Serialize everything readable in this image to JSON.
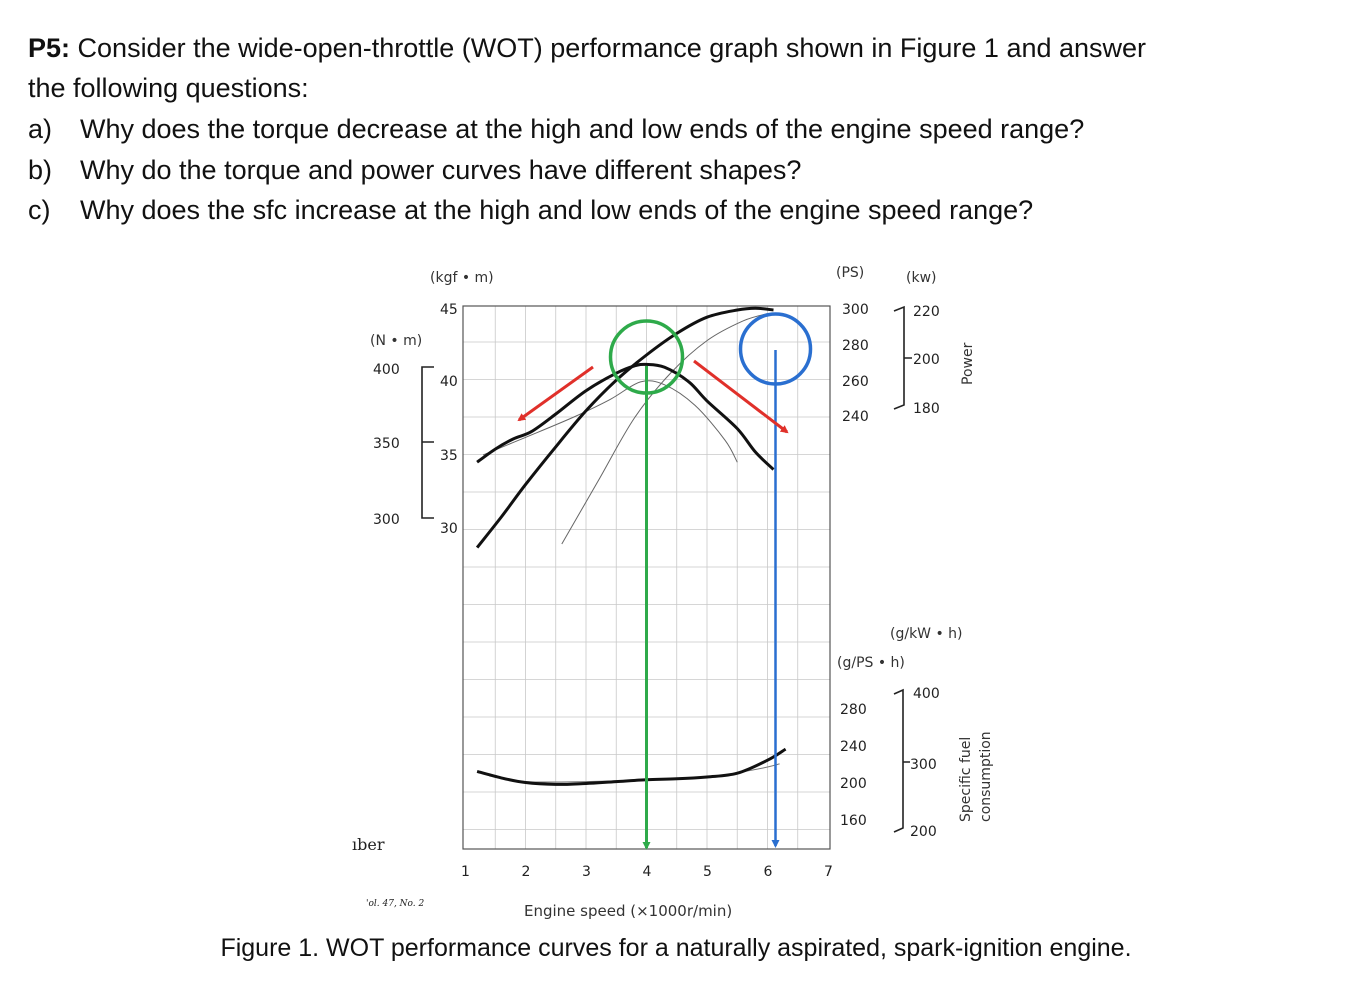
{
  "question": {
    "label": "P5:",
    "intro_line1": " Consider the wide-open-throttle (WOT) performance graph shown in Figure 1 and answer",
    "intro_line2": "the following questions:",
    "items": [
      {
        "marker": "a)",
        "text": "Why does the torque decrease at the high and low ends of the engine speed range?"
      },
      {
        "marker": "b)",
        "text": "Why do the torque and power curves have different shapes?"
      },
      {
        "marker": "c)",
        "text": "Why does the sfc increase at the high and low ends of the engine speed range?"
      }
    ]
  },
  "caption": "Figure 1. WOT performance curves for a naturally aspirated, spark-ignition engine.",
  "scan_fragments": {
    "left_text": "ıber",
    "source": "'ol. 47, No. 2"
  },
  "colors": {
    "green": "#2eaa4a",
    "blue": "#2a6fd0",
    "red": "#e0302a",
    "curve": "#111111"
  },
  "chart_data": {
    "type": "line",
    "xlabel": "Engine speed (×1000r/min)",
    "x_ticks": [
      "1",
      "2",
      "3",
      "4",
      "5",
      "6",
      "7"
    ],
    "xlim": [
      1,
      7
    ],
    "axes": {
      "torque_nm": {
        "unit": "(N • m)",
        "ticks": [
          "400",
          "350",
          "300"
        ]
      },
      "torque_kgfm": {
        "unit": "(kgf • m)",
        "ticks": [
          "45",
          "40",
          "35",
          "30"
        ]
      },
      "power_ps": {
        "unit": "(PS)",
        "ticks": [
          "300",
          "280",
          "260",
          "240"
        ]
      },
      "power_kw": {
        "unit": "(kw)",
        "ticks": [
          "220",
          "200",
          "180"
        ]
      },
      "power_label": "Power",
      "sfc_gpsh": {
        "unit": "(g/PS • h)",
        "ticks": [
          "280",
          "240",
          "200",
          "160"
        ]
      },
      "sfc_gkwh": {
        "unit": "(g/kW • h)",
        "ticks": [
          "400",
          "300",
          "200"
        ]
      },
      "sfc_label_1": "Specific fuel",
      "sfc_label_2": "consumption"
    },
    "series": [
      {
        "x": [
          1.2,
          1.5,
          1.8,
          2.1,
          2.5,
          3.0,
          3.5,
          3.8,
          4.0,
          4.3,
          4.7,
          5.0,
          5.5,
          5.8,
          6.1
        ],
        "y": [
          34.3,
          35.2,
          35.9,
          36.4,
          37.6,
          39.2,
          40.4,
          40.9,
          41.0,
          40.8,
          39.8,
          38.5,
          36.6,
          35.0,
          33.8
        ]
      },
      {
        "x": [
          1.2,
          1.6,
          2.0,
          2.5,
          3.0,
          3.5,
          4.0,
          4.5,
          5.0,
          5.5,
          5.8,
          6.1
        ],
        "y": [
          168,
          185,
          203,
          224,
          244,
          261,
          275,
          287,
          296,
          300,
          301,
          300
        ]
      },
      {
        "x": [
          1.2,
          1.6,
          2.0,
          2.5,
          3.0,
          3.5,
          4.0,
          4.5,
          5.0,
          5.5,
          6.0,
          6.3
        ],
        "y": [
          214,
          207,
          202,
          200,
          201,
          203,
          205,
          206,
          208,
          212,
          226,
          238
        ]
      }
    ],
    "markers": {
      "peak_torque_rpm": 4.0,
      "peak_power_rpm": 6.0
    }
  }
}
